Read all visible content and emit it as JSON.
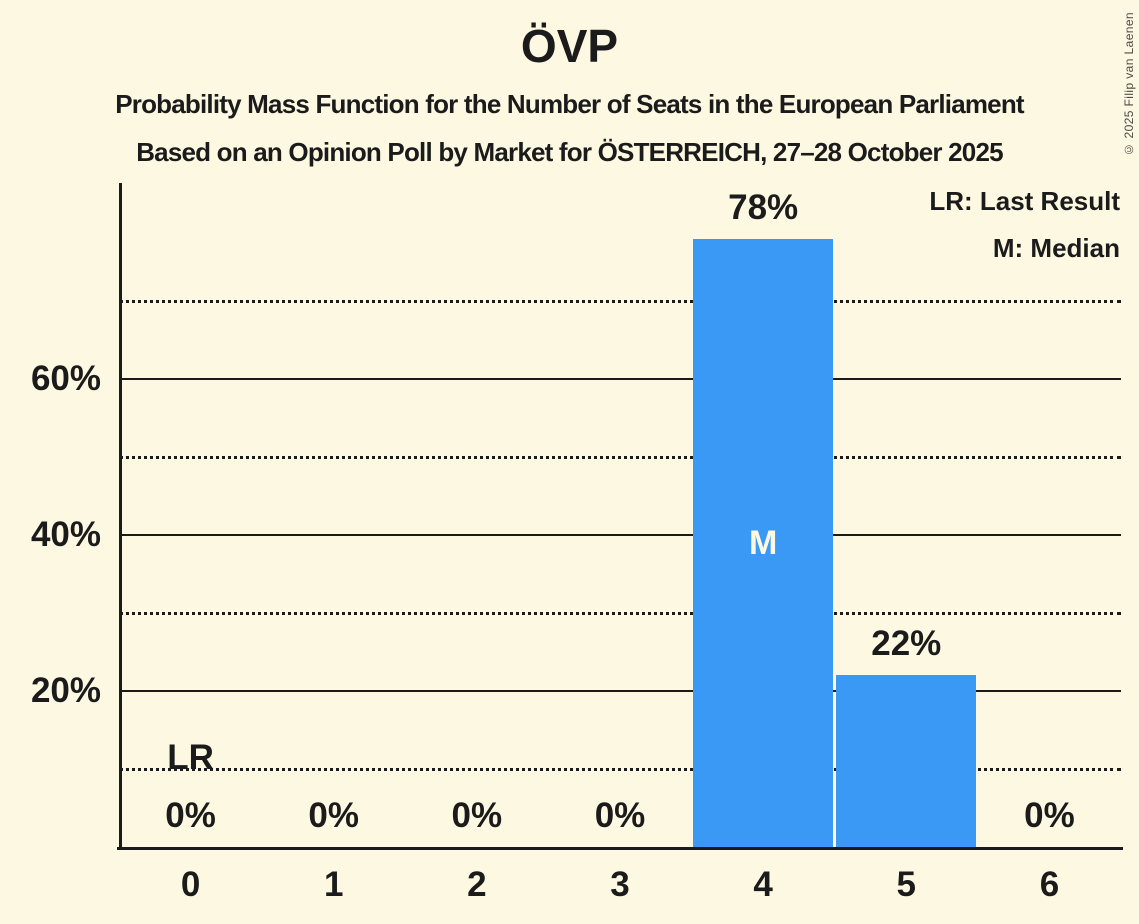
{
  "header": {
    "title": "ÖVP",
    "subtitle1": "Probability Mass Function for the Number of Seats in the European Parliament",
    "subtitle2": "Based on an Opinion Poll by Market for ÖSTERREICH, 27–28 October 2025"
  },
  "legend": {
    "last_result": "LR: Last Result",
    "median": "M: Median"
  },
  "copyright": "© 2025 Filip van Laenen",
  "colors": {
    "background": "#FDF8E2",
    "bar": "#3B99F6",
    "text": "#1B1B1B",
    "median_text": "#FDF8E2"
  },
  "chart_data": {
    "type": "bar",
    "title": "ÖVP",
    "categories": [
      "0",
      "1",
      "2",
      "3",
      "4",
      "5",
      "6"
    ],
    "values": [
      0,
      0,
      0,
      0,
      78,
      22,
      0
    ],
    "value_labels": [
      "0%",
      "0%",
      "0%",
      "0%",
      "78%",
      "22%",
      "0%"
    ],
    "xlabel": "",
    "ylabel": "",
    "ylim": [
      0,
      85
    ],
    "major_gridlines": [
      {
        "value": 20,
        "label": "20%",
        "style": "solid"
      },
      {
        "value": 40,
        "label": "40%",
        "style": "solid"
      },
      {
        "value": 60,
        "label": "60%",
        "style": "solid"
      }
    ],
    "minor_gridlines": [
      10,
      30,
      50,
      70
    ],
    "annotations": {
      "median": {
        "category": "4",
        "label": "M"
      },
      "last_result": {
        "category": "0",
        "label": "LR"
      }
    },
    "legend_position": "top-right",
    "grid": "horizontal; solid majors, dotted minors"
  }
}
